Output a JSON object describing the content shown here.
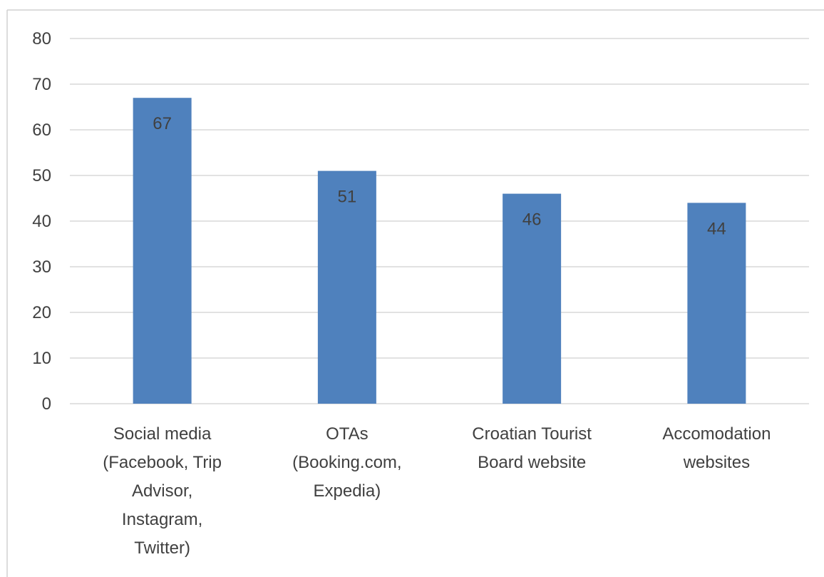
{
  "chart_data": {
    "type": "bar",
    "categories": [
      [
        "Social media",
        "(Facebook, Trip",
        "Advisor,",
        "Instagram,",
        "Twitter)"
      ],
      [
        "OTAs",
        "(Booking.com,",
        "Expedia)"
      ],
      [
        "Croatian Tourist",
        "Board website"
      ],
      [
        "Accomodation",
        "websites"
      ]
    ],
    "values": [
      67,
      51,
      46,
      44
    ],
    "data_labels": [
      "67",
      "51",
      "46",
      "44"
    ],
    "yticks": [
      "0",
      "10",
      "20",
      "30",
      "40",
      "50",
      "60",
      "70",
      "80"
    ],
    "ylim": [
      0,
      80
    ],
    "title": "",
    "xlabel": "",
    "ylabel": "",
    "grid": true,
    "legend": "none",
    "colors": {
      "bar": "#4f81bd",
      "grid": "#d9d9d9",
      "text": "#404040"
    }
  }
}
